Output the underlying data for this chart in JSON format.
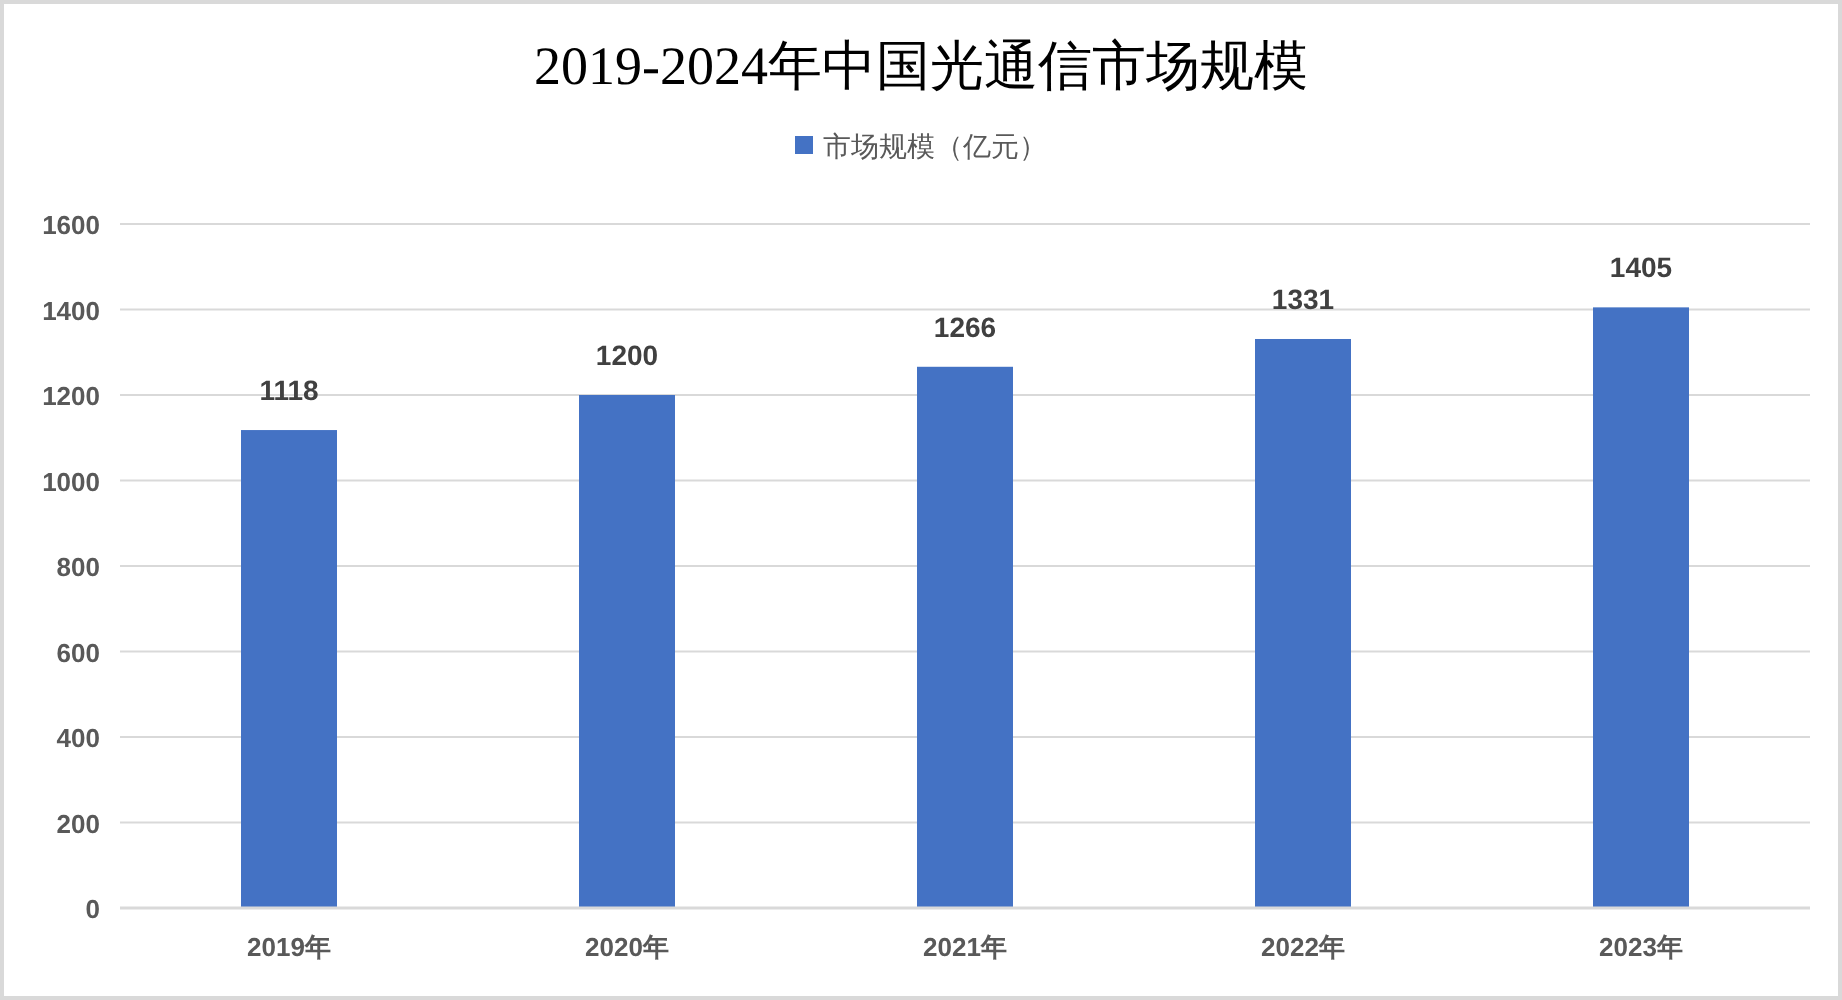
{
  "chart_data": {
    "type": "bar",
    "title": "2019-2024年中国光通信市场规模",
    "categories": [
      "2019年",
      "2020年",
      "2021年",
      "2022年",
      "2023年"
    ],
    "series": [
      {
        "name": "市场规模（亿元）",
        "color": "#4472c4",
        "values": [
          1118,
          1200,
          1266,
          1331,
          1405
        ]
      }
    ],
    "ylim": [
      0,
      1600
    ],
    "yticks": [
      0,
      200,
      400,
      600,
      800,
      1000,
      1200,
      1400,
      1600
    ],
    "grid": "y",
    "legend": "top",
    "data_labels": true
  }
}
